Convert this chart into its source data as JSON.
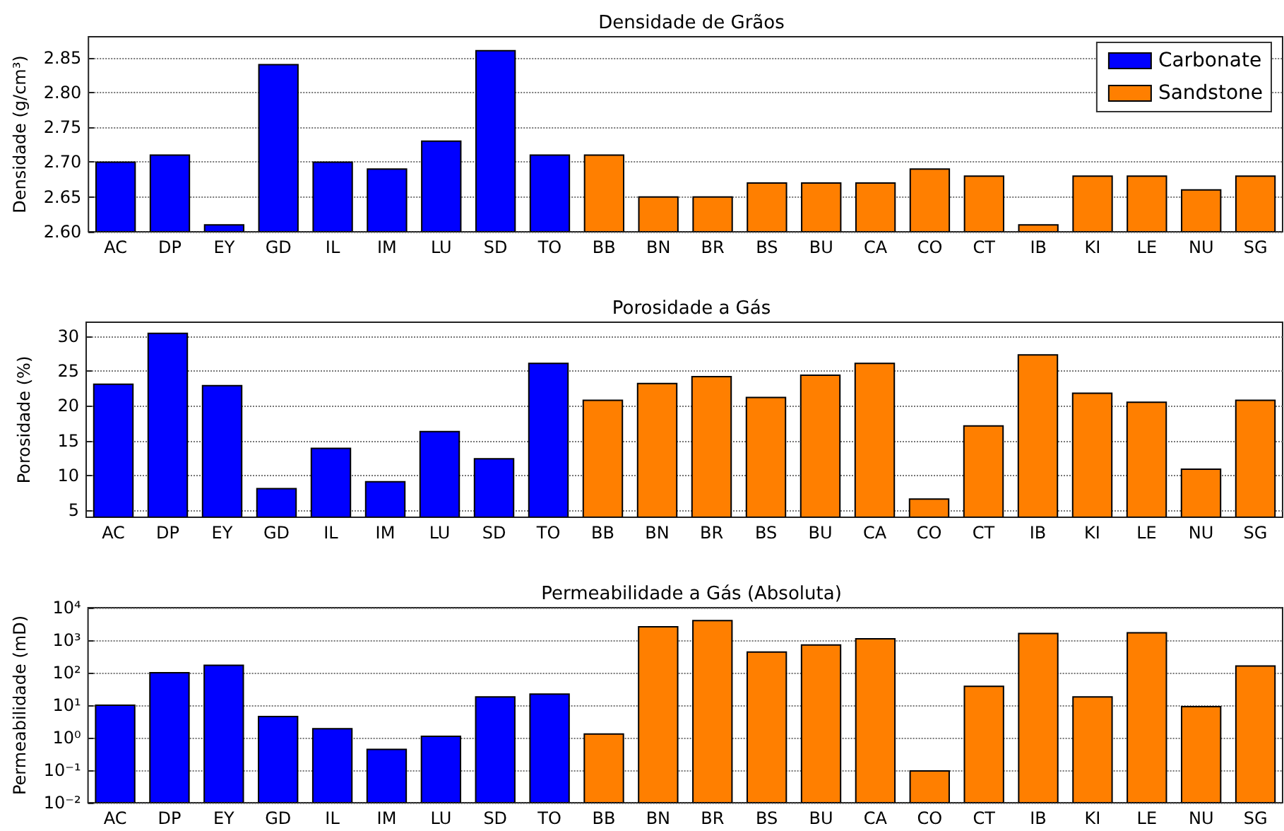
{
  "chart_data": [
    {
      "type": "bar",
      "title": "Densidade de Grãos",
      "ylabel": "Densidade (g/cm³)",
      "categories": [
        "AC",
        "DP",
        "EY",
        "GD",
        "IL",
        "IM",
        "LU",
        "SD",
        "TO",
        "BB",
        "BN",
        "BR",
        "BS",
        "BU",
        "CA",
        "CO",
        "CT",
        "IB",
        "KI",
        "LE",
        "NU",
        "SG"
      ],
      "series": [
        {
          "name": "Carbonate",
          "color": "#0000ff",
          "values": [
            2.7,
            2.71,
            2.61,
            2.84,
            2.7,
            2.69,
            2.73,
            2.86,
            2.71,
            null,
            null,
            null,
            null,
            null,
            null,
            null,
            null,
            null,
            null,
            null,
            null,
            null
          ]
        },
        {
          "name": "Sandstone",
          "color": "#ff7f00",
          "values": [
            null,
            null,
            null,
            null,
            null,
            null,
            null,
            null,
            null,
            2.71,
            2.65,
            2.65,
            2.67,
            2.67,
            2.67,
            2.69,
            2.68,
            2.61,
            2.68,
            2.68,
            2.66,
            2.68
          ]
        }
      ],
      "ylim": [
        2.6,
        2.88
      ],
      "yticks": [
        {
          "value": 2.6,
          "label": "2.60"
        },
        2.65,
        {
          "value": 2.7,
          "label": "2.70"
        },
        2.75,
        {
          "value": 2.8,
          "label": "2.80"
        },
        2.85
      ],
      "grid": "y",
      "legend": "top right"
    },
    {
      "type": "bar",
      "title": "Porosidade a Gás",
      "ylabel": "Porosidade (%)",
      "categories": [
        "AC",
        "DP",
        "EY",
        "GD",
        "IL",
        "IM",
        "LU",
        "SD",
        "TO",
        "BB",
        "BN",
        "BR",
        "BS",
        "BU",
        "CA",
        "CO",
        "CT",
        "IB",
        "KI",
        "LE",
        "NU",
        "SG"
      ],
      "series": [
        {
          "color": "#0000ff",
          "values": [
            23.1,
            30.4,
            22.9,
            8.1,
            13.9,
            9.1,
            16.3,
            12.4,
            26.1,
            null,
            null,
            null,
            null,
            null,
            null,
            null,
            null,
            null,
            null,
            null,
            null,
            null
          ]
        },
        {
          "color": "#ff7f00",
          "values": [
            null,
            null,
            null,
            null,
            null,
            null,
            null,
            null,
            null,
            20.8,
            23.2,
            24.2,
            21.2,
            24.4,
            26.1,
            6.6,
            17.1,
            27.3,
            21.8,
            20.5,
            10.9,
            20.8
          ]
        }
      ],
      "ylim": [
        4,
        32
      ],
      "yticks": [
        5,
        10,
        15,
        20,
        25,
        30
      ],
      "grid": "y"
    },
    {
      "type": "bar",
      "title": "Permeabilidade a Gás (Absoluta)",
      "ylabel": "Permeabilidade (mD)",
      "categories": [
        "AC",
        "DP",
        "EY",
        "GD",
        "IL",
        "IM",
        "LU",
        "SD",
        "TO",
        "BB",
        "BN",
        "BR",
        "BS",
        "BU",
        "CA",
        "CO",
        "CT",
        "IB",
        "KI",
        "LE",
        "NU",
        "SG"
      ],
      "series": [
        {
          "color": "#0000ff",
          "values": [
            10,
            100,
            170,
            4.5,
            1.9,
            0.44,
            1.1,
            18,
            22,
            null,
            null,
            null,
            null,
            null,
            null,
            null,
            null,
            null,
            null,
            null,
            null,
            null
          ]
        },
        {
          "color": "#ff7f00",
          "values": [
            null,
            null,
            null,
            null,
            null,
            null,
            null,
            null,
            null,
            1.3,
            2600,
            4000,
            430,
            710,
            1100,
            0.095,
            38,
            1600,
            18,
            1700,
            9,
            160
          ]
        }
      ],
      "ylim": [
        0.01,
        10000
      ],
      "yticks": [
        {
          "value": 0.01,
          "label": "10⁻²"
        },
        {
          "value": 0.1,
          "label": "10⁻¹"
        },
        {
          "value": 1,
          "label": "10⁰"
        },
        {
          "value": 10,
          "label": "10¹"
        },
        {
          "value": 100,
          "label": "10²"
        },
        {
          "value": 1000,
          "label": "10³"
        },
        {
          "value": 10000,
          "label": "10⁴"
        }
      ],
      "log": true,
      "grid": "y"
    }
  ]
}
